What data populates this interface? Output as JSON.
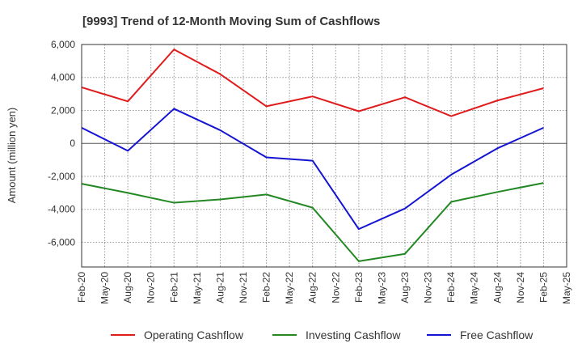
{
  "chart_data": {
    "type": "line",
    "title": "[9993]  Trend of 12-Month Moving Sum of Cashflows",
    "ylabel": "Amount (million yen)",
    "xlabel": "",
    "ylim": [
      -7500,
      6000
    ],
    "y_ticks": [
      6000,
      4000,
      2000,
      0,
      -2000,
      -4000,
      -6000
    ],
    "y_tick_labels": [
      "6,000",
      "4,000",
      "2,000",
      "0",
      "-2,000",
      "-4,000",
      "-6,000"
    ],
    "x_tick_labels": [
      "Feb-20",
      "May-20",
      "Aug-20",
      "Nov-20",
      "Feb-21",
      "May-21",
      "Aug-21",
      "Nov-21",
      "Feb-22",
      "May-22",
      "Aug-22",
      "Nov-22",
      "Feb-23",
      "May-23",
      "Aug-23",
      "Nov-23",
      "Feb-24",
      "May-24",
      "Aug-24",
      "Nov-24",
      "Feb-25",
      "May-25"
    ],
    "x": [
      "Feb-20",
      "Aug-20",
      "Feb-21",
      "Aug-21",
      "Feb-22",
      "Aug-22",
      "Feb-23",
      "Aug-23",
      "Feb-24",
      "Aug-24",
      "Feb-25"
    ],
    "grid": true,
    "legend_position": "bottom",
    "series": [
      {
        "name": "Operating Cashflow",
        "color": "#e01b1b",
        "values": [
          3400,
          2550,
          5700,
          4200,
          2250,
          2850,
          1950,
          2800,
          1650,
          2600,
          3350
        ]
      },
      {
        "name": "Investing Cashflow",
        "color": "#238823",
        "values": [
          -2450,
          -3000,
          -3600,
          -3400,
          -3100,
          -3900,
          -7150,
          -6700,
          -3550,
          -2950,
          -2400
        ]
      },
      {
        "name": "Free Cashflow",
        "color": "#1414d2",
        "values": [
          950,
          -450,
          2100,
          800,
          -850,
          -1050,
          -5200,
          -3950,
          -1900,
          -300,
          950
        ]
      }
    ]
  }
}
